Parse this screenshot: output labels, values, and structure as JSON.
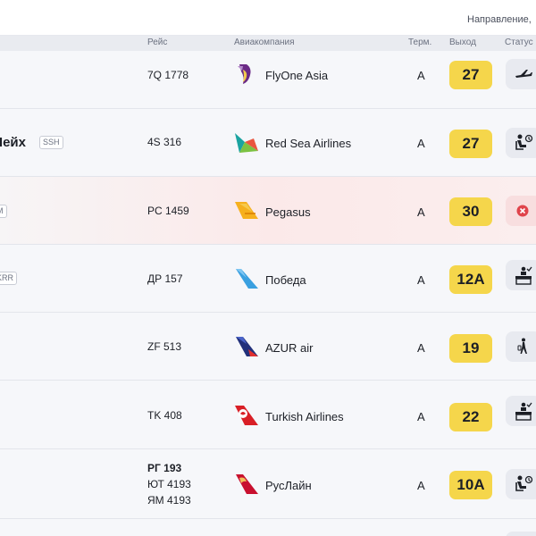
{
  "top_hint": "Направление,",
  "columns": {
    "flight": "Рейс",
    "airline": "Авиакомпания",
    "terminal": "Терм.",
    "gate": "Выход",
    "status": "Статус"
  },
  "rows": [
    {
      "destination": "",
      "dest_code": "",
      "flights": [
        "7Q 1778"
      ],
      "airline": "FlyOne Asia",
      "terminal": "A",
      "gate": "27",
      "status_icon": "departed-plane-icon"
    },
    {
      "destination": "Шейх",
      "dest_code": "SSH",
      "flights": [
        "4S 316"
      ],
      "airline": "Red Sea Airlines",
      "terminal": "A",
      "gate": "27",
      "status_icon": "boarding-icon"
    },
    {
      "destination": "",
      "dest_code": "М",
      "flights": [
        "PC 1459"
      ],
      "airline": "Pegasus",
      "terminal": "A",
      "gate": "30",
      "status_icon": "cancelled-icon"
    },
    {
      "destination": "",
      "dest_code": "KRR",
      "flights": [
        "ДР 157"
      ],
      "airline": "Победа",
      "terminal": "A",
      "gate": "12A",
      "status_icon": "check-in-icon"
    },
    {
      "destination": "",
      "dest_code": "",
      "flights": [
        "ZF 513"
      ],
      "airline": "AZUR air",
      "terminal": "A",
      "gate": "19",
      "status_icon": "go-to-gate-icon"
    },
    {
      "destination": "",
      "dest_code": "",
      "flights": [
        "TK 408"
      ],
      "airline": "Turkish Airlines",
      "terminal": "A",
      "gate": "22",
      "status_icon": "check-in-icon"
    },
    {
      "destination": "",
      "dest_code": "",
      "flights": [
        "РГ 193",
        "ЮТ 4193",
        "ЯМ 4193"
      ],
      "airline": "РусЛайн",
      "terminal": "A",
      "gate": "10A",
      "status_icon": "boarding-icon"
    }
  ],
  "colors": {
    "gate_badge": "#f5d64b",
    "status_bg": "#e8eaf0",
    "cancelled_bg": "#f8dedf",
    "cancelled_icon": "#e0444b"
  }
}
